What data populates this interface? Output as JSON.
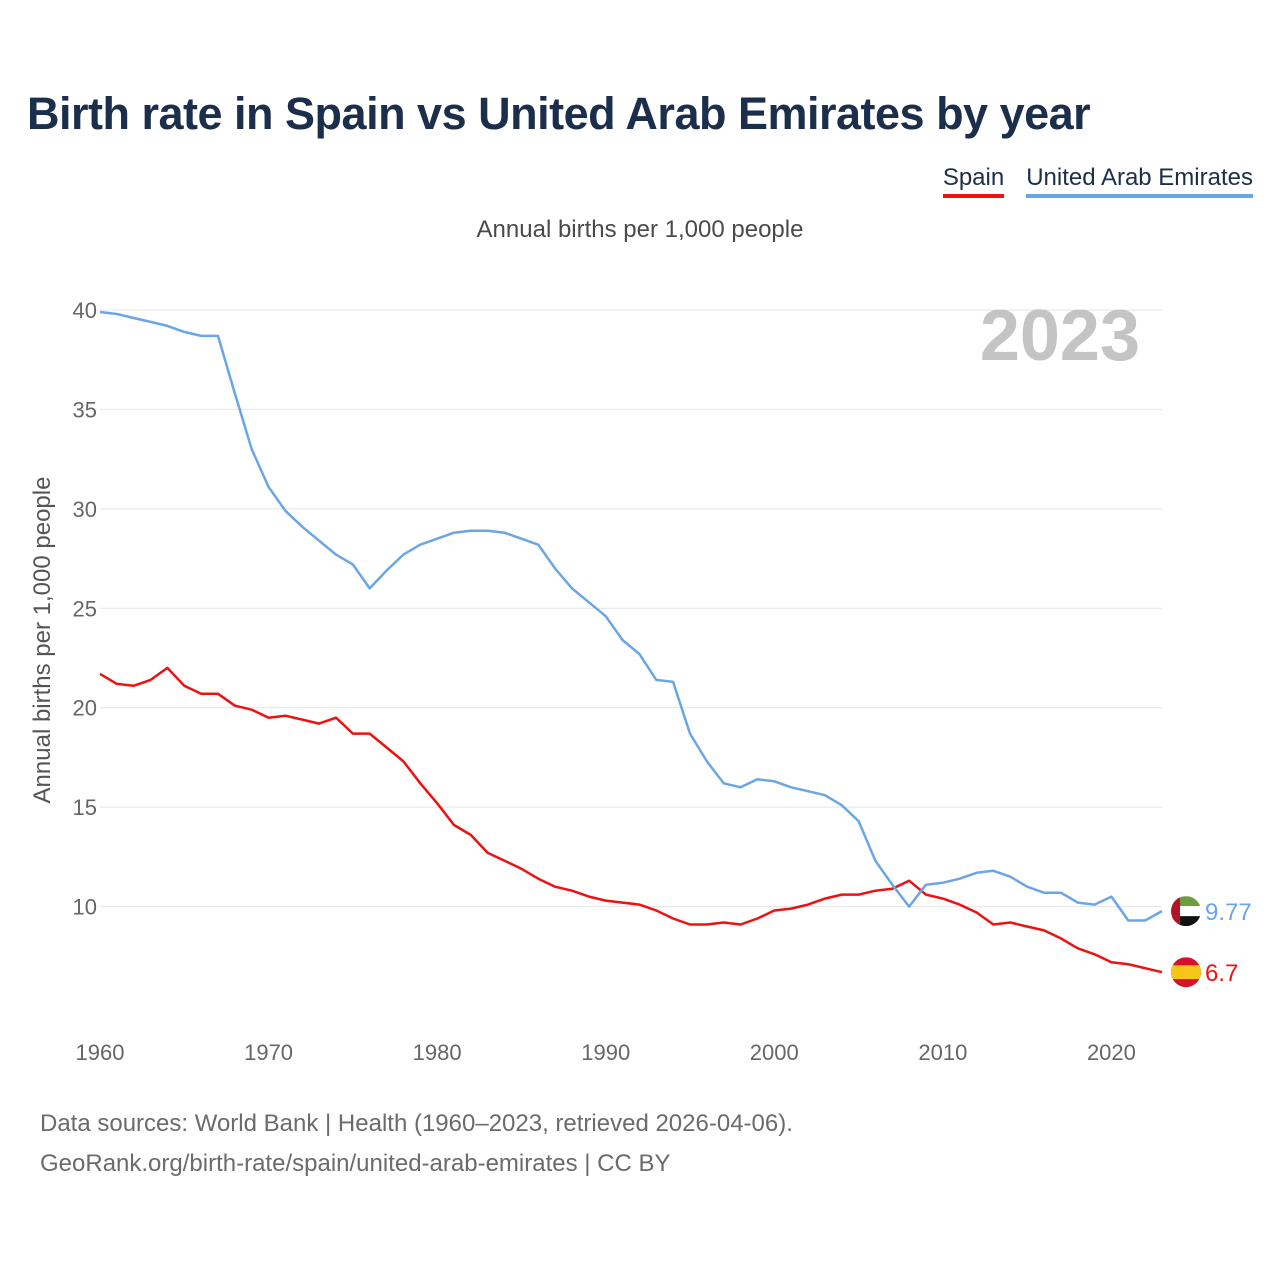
{
  "title": "Birth rate in Spain vs United Arab Emirates by year",
  "legend": [
    {
      "label": "Spain",
      "color": "#ee1111"
    },
    {
      "label": "United Arab Emirates",
      "color": "#6aa6e6"
    }
  ],
  "subtitle": "Annual births per 1,000 people",
  "year_badge": "2023",
  "footer": {
    "line1": "Data sources: World Bank | Health (1960–2023, retrieved 2026-04-06).",
    "line2": "GeoRank.org/birth-rate/spain/united-arab-emirates | CC BY"
  },
  "chart_data": {
    "type": "line",
    "ylabel": "Annual births per 1,000 people",
    "xlabel": "",
    "xlim": [
      1960,
      2023
    ],
    "ylim": [
      5,
      40
    ],
    "x_ticks": [
      1960,
      1970,
      1980,
      1990,
      2000,
      2010,
      2020
    ],
    "y_ticks": [
      10,
      15,
      20,
      25,
      30,
      35,
      40
    ],
    "grid": true,
    "x": [
      1960,
      1961,
      1962,
      1963,
      1964,
      1965,
      1966,
      1967,
      1968,
      1969,
      1970,
      1971,
      1972,
      1973,
      1974,
      1975,
      1976,
      1977,
      1978,
      1979,
      1980,
      1981,
      1982,
      1983,
      1984,
      1985,
      1986,
      1987,
      1988,
      1989,
      1990,
      1991,
      1992,
      1993,
      1994,
      1995,
      1996,
      1997,
      1998,
      1999,
      2000,
      2001,
      2002,
      2003,
      2004,
      2005,
      2006,
      2007,
      2008,
      2009,
      2010,
      2011,
      2012,
      2013,
      2014,
      2015,
      2016,
      2017,
      2018,
      2019,
      2020,
      2021,
      2022,
      2023
    ],
    "series": [
      {
        "name": "Spain",
        "color": "#ee1111",
        "end_label": "6.7",
        "flag": "spain",
        "values": [
          21.7,
          21.2,
          21.1,
          21.4,
          22.0,
          21.1,
          20.7,
          20.7,
          20.1,
          19.9,
          19.5,
          19.6,
          19.4,
          19.2,
          19.5,
          18.7,
          18.7,
          18.0,
          17.3,
          16.2,
          15.2,
          14.1,
          13.6,
          12.7,
          12.3,
          11.9,
          11.4,
          11.0,
          10.8,
          10.5,
          10.3,
          10.2,
          10.1,
          9.8,
          9.4,
          9.1,
          9.1,
          9.2,
          9.1,
          9.4,
          9.8,
          9.9,
          10.1,
          10.4,
          10.6,
          10.6,
          10.8,
          10.9,
          11.3,
          10.6,
          10.4,
          10.1,
          9.7,
          9.1,
          9.2,
          9.0,
          8.8,
          8.4,
          7.9,
          7.6,
          7.2,
          7.1,
          6.9,
          6.7
        ]
      },
      {
        "name": "United Arab Emirates",
        "color": "#6aa6e6",
        "end_label": "9.77",
        "flag": "uae",
        "values": [
          39.9,
          39.8,
          39.6,
          39.4,
          39.2,
          38.9,
          38.7,
          38.7,
          35.8,
          33.0,
          31.1,
          29.9,
          29.1,
          28.4,
          27.7,
          27.2,
          26.0,
          26.9,
          27.7,
          28.2,
          28.5,
          28.8,
          28.9,
          28.9,
          28.8,
          28.5,
          28.2,
          27.0,
          26.0,
          25.3,
          24.6,
          23.4,
          22.7,
          21.4,
          21.3,
          18.7,
          17.3,
          16.2,
          16.0,
          16.4,
          16.3,
          16.0,
          15.8,
          15.6,
          15.1,
          14.3,
          12.3,
          11.1,
          10.0,
          11.1,
          11.2,
          11.4,
          11.7,
          11.8,
          11.5,
          11.0,
          10.7,
          10.7,
          10.2,
          10.1,
          10.5,
          9.3,
          9.3,
          9.77
        ]
      }
    ]
  }
}
